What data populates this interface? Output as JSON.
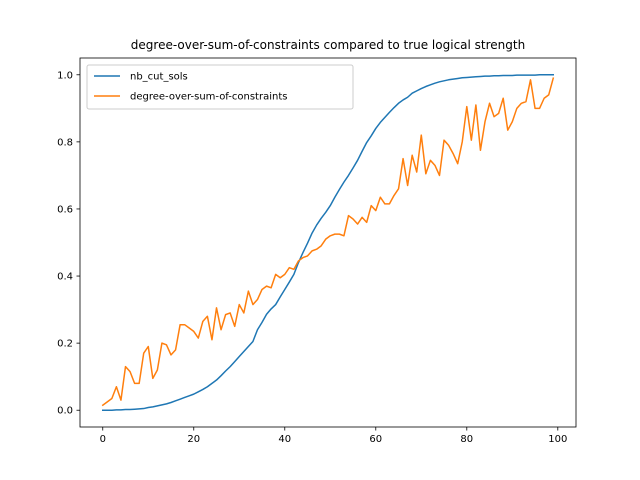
{
  "chart_data": {
    "type": "line",
    "title": "degree-over-sum-of-constraints compared to true logical strength",
    "xlabel": "",
    "ylabel": "",
    "xlim": [
      -5,
      104
    ],
    "ylim": [
      -0.05,
      1.05
    ],
    "xticks": [
      0,
      20,
      40,
      60,
      80,
      100
    ],
    "yticks": [
      0.0,
      0.2,
      0.4,
      0.6,
      0.8,
      1.0
    ],
    "xtick_labels": [
      "0",
      "20",
      "40",
      "60",
      "80",
      "100"
    ],
    "ytick_labels": [
      "0.0",
      "0.2",
      "0.4",
      "0.6",
      "0.8",
      "1.0"
    ],
    "grid": false,
    "legend_position": "upper-left",
    "x": [
      0,
      1,
      2,
      3,
      4,
      5,
      6,
      7,
      8,
      9,
      10,
      11,
      12,
      13,
      14,
      15,
      16,
      17,
      18,
      19,
      20,
      21,
      22,
      23,
      24,
      25,
      26,
      27,
      28,
      29,
      30,
      31,
      32,
      33,
      34,
      35,
      36,
      37,
      38,
      39,
      40,
      41,
      42,
      43,
      44,
      45,
      46,
      47,
      48,
      49,
      50,
      51,
      52,
      53,
      54,
      55,
      56,
      57,
      58,
      59,
      60,
      61,
      62,
      63,
      64,
      65,
      66,
      67,
      68,
      69,
      70,
      71,
      72,
      73,
      74,
      75,
      76,
      77,
      78,
      79,
      80,
      81,
      82,
      83,
      84,
      85,
      86,
      87,
      88,
      89,
      90,
      91,
      92,
      93,
      94,
      95,
      96,
      97,
      98,
      99
    ],
    "series": [
      {
        "name": "nb_cut_sols",
        "color": "#1f77b4",
        "values": [
          0.0,
          0.0,
          0.0,
          0.001,
          0.001,
          0.002,
          0.002,
          0.003,
          0.004,
          0.005,
          0.008,
          0.01,
          0.013,
          0.016,
          0.019,
          0.023,
          0.028,
          0.033,
          0.038,
          0.043,
          0.048,
          0.055,
          0.062,
          0.07,
          0.08,
          0.09,
          0.103,
          0.117,
          0.13,
          0.145,
          0.16,
          0.175,
          0.19,
          0.205,
          0.24,
          0.262,
          0.286,
          0.302,
          0.315,
          0.338,
          0.36,
          0.382,
          0.405,
          0.44,
          0.47,
          0.498,
          0.528,
          0.552,
          0.572,
          0.59,
          0.61,
          0.635,
          0.658,
          0.68,
          0.7,
          0.722,
          0.745,
          0.772,
          0.798,
          0.818,
          0.84,
          0.858,
          0.873,
          0.888,
          0.902,
          0.915,
          0.925,
          0.933,
          0.945,
          0.952,
          0.959,
          0.965,
          0.97,
          0.975,
          0.979,
          0.982,
          0.985,
          0.987,
          0.989,
          0.991,
          0.992,
          0.993,
          0.994,
          0.995,
          0.996,
          0.996,
          0.997,
          0.997,
          0.998,
          0.998,
          0.998,
          0.999,
          0.999,
          0.999,
          0.999,
          0.999,
          1.0,
          1.0,
          1.0,
          1.0
        ]
      },
      {
        "name": "degree-over-sum-of-constraints",
        "color": "#ff7f0e",
        "values": [
          0.015,
          0.025,
          0.035,
          0.07,
          0.03,
          0.13,
          0.115,
          0.08,
          0.08,
          0.17,
          0.19,
          0.095,
          0.12,
          0.2,
          0.195,
          0.165,
          0.18,
          0.255,
          0.255,
          0.245,
          0.235,
          0.215,
          0.265,
          0.28,
          0.21,
          0.305,
          0.24,
          0.285,
          0.29,
          0.25,
          0.315,
          0.29,
          0.355,
          0.315,
          0.33,
          0.36,
          0.37,
          0.365,
          0.405,
          0.395,
          0.405,
          0.425,
          0.42,
          0.445,
          0.455,
          0.46,
          0.475,
          0.48,
          0.49,
          0.51,
          0.52,
          0.525,
          0.525,
          0.52,
          0.58,
          0.57,
          0.555,
          0.575,
          0.56,
          0.61,
          0.595,
          0.635,
          0.615,
          0.615,
          0.64,
          0.66,
          0.75,
          0.67,
          0.76,
          0.71,
          0.82,
          0.705,
          0.745,
          0.73,
          0.7,
          0.805,
          0.79,
          0.765,
          0.735,
          0.8,
          0.905,
          0.805,
          0.91,
          0.775,
          0.86,
          0.915,
          0.875,
          0.885,
          0.93,
          0.835,
          0.86,
          0.9,
          0.915,
          0.92,
          0.985,
          0.9,
          0.9,
          0.93,
          0.94,
          0.99
        ]
      }
    ]
  }
}
